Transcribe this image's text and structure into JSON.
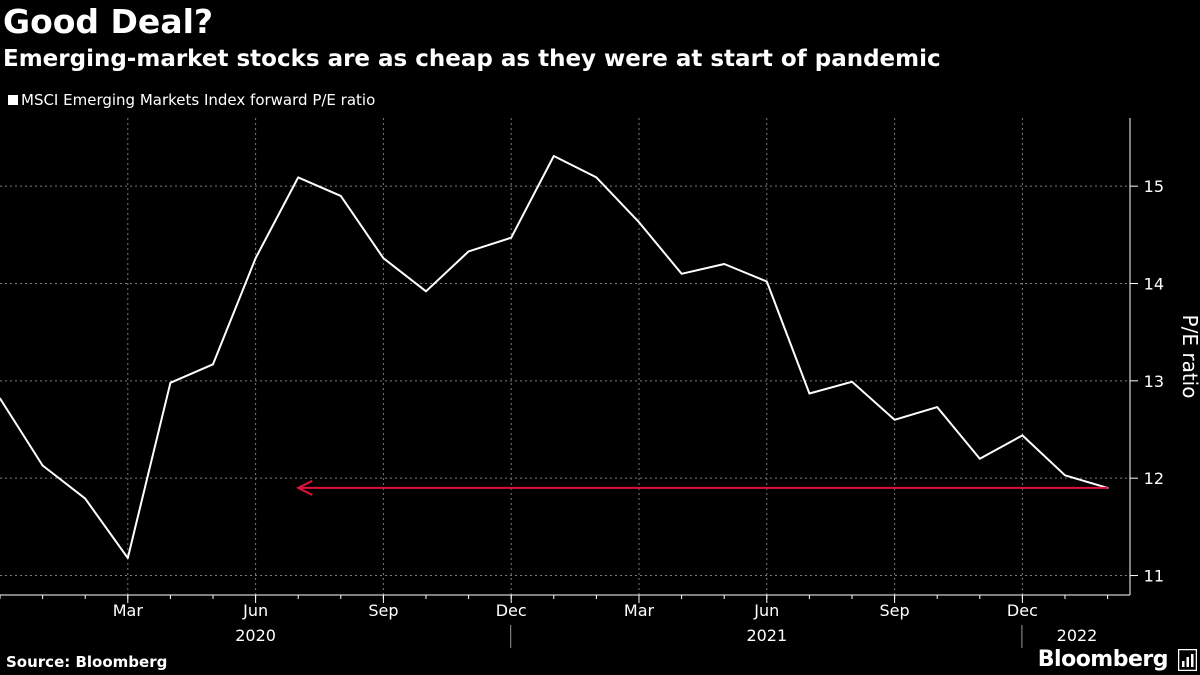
{
  "header": {
    "title": "Good Deal?",
    "subtitle": "Emerging-market stocks are as cheap as they were at start of pandemic"
  },
  "footer": {
    "source": "Source: Bloomberg",
    "brand": "Bloomberg"
  },
  "colors": {
    "background": "#000000",
    "line": "#ffffff",
    "grid": "#7a7a7a",
    "arrow": "#e0103a"
  },
  "chart_data": {
    "type": "line",
    "title": "Good Deal?",
    "subtitle": "Emerging-market stocks are as cheap as they were at start of pandemic",
    "legend": [
      "MSCI Emerging Markets Index forward P/E ratio"
    ],
    "legend_position": "top-left",
    "ylabel": "P/E ratio",
    "y_axis_side": "right",
    "ylim": [
      10.8,
      15.7
    ],
    "yticks": [
      11,
      12,
      13,
      14,
      15
    ],
    "grid": true,
    "x_month_ticks": [
      {
        "label": "Mar",
        "index": 3
      },
      {
        "label": "Jun",
        "index": 6
      },
      {
        "label": "Sep",
        "index": 9
      },
      {
        "label": "Dec",
        "index": 12
      },
      {
        "label": "Mar",
        "index": 15
      },
      {
        "label": "Jun",
        "index": 18
      },
      {
        "label": "Sep",
        "index": 21
      },
      {
        "label": "Dec",
        "index": 24
      }
    ],
    "x_year_labels": [
      {
        "label": "2020",
        "index": 6
      },
      {
        "label": "2021",
        "index": 18
      },
      {
        "label": "2022",
        "index": 25
      }
    ],
    "year_separators": [
      12,
      24
    ],
    "series": [
      {
        "name": "MSCI Emerging Markets Index forward P/E ratio",
        "x": [
          "Dec 2019",
          "Jan 2020",
          "Feb 2020",
          "Mar 2020",
          "Apr 2020",
          "May 2020",
          "Jun 2020",
          "Jul 2020",
          "Aug 2020",
          "Sep 2020",
          "Oct 2020",
          "Nov 2020",
          "Dec 2020",
          "Jan 2021",
          "Feb 2021",
          "Mar 2021",
          "Apr 2021",
          "May 2021",
          "Jun 2021",
          "Jul 2021",
          "Aug 2021",
          "Sep 2021",
          "Oct 2021",
          "Nov 2021",
          "Dec 2021",
          "Jan 2022",
          "Feb 2022"
        ],
        "values": [
          12.82,
          12.13,
          11.79,
          11.18,
          12.98,
          13.17,
          14.26,
          15.09,
          14.9,
          14.26,
          13.92,
          14.33,
          14.47,
          15.31,
          15.09,
          14.63,
          14.1,
          14.2,
          14.02,
          12.87,
          12.99,
          12.6,
          12.73,
          12.2,
          12.44,
          12.03,
          11.9
        ]
      }
    ],
    "annotations": [
      {
        "type": "arrow",
        "from_index": 26,
        "to_index": 7,
        "y": 11.9,
        "color": "#e0103a"
      }
    ]
  }
}
